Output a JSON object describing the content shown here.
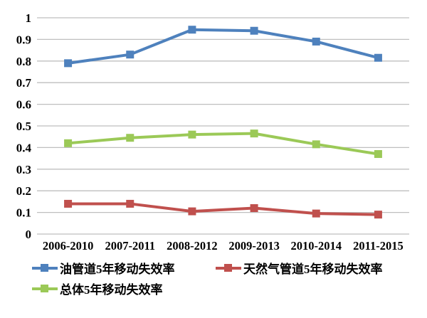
{
  "chart_data": {
    "type": "line",
    "title": "",
    "xlabel": "",
    "ylabel": "",
    "categories": [
      "2006-2010",
      "2007-2011",
      "2008-2012",
      "2009-2013",
      "2010-2014",
      "2011-2015"
    ],
    "series": [
      {
        "name": "油管道5年移动失效率",
        "color": "#4E81BD",
        "marker": "square",
        "values": [
          0.79,
          0.83,
          0.945,
          0.94,
          0.89,
          0.815
        ]
      },
      {
        "name": "天然气管道5年移动失效率",
        "color": "#C0504D",
        "marker": "square",
        "values": [
          0.14,
          0.14,
          0.105,
          0.12,
          0.095,
          0.09
        ]
      },
      {
        "name": "总体5年移动失效率",
        "color": "#9BC957",
        "marker": "square",
        "values": [
          0.42,
          0.445,
          0.46,
          0.465,
          0.415,
          0.37
        ]
      }
    ],
    "ylim": [
      0,
      1
    ],
    "y_ticks": [
      1,
      0.9,
      0.8,
      0.7,
      0.6,
      0.5,
      0.4,
      0.3,
      0.2,
      0.1,
      0
    ],
    "y_tick_labels": [
      "1",
      "0.9",
      "0.8",
      "0.7",
      "0.6",
      "0.5",
      "0.4",
      "0.3",
      "0.2",
      "0.1",
      "0"
    ],
    "grid": "horizontal",
    "gridline_color": "#BFBFBF",
    "text_color": "#000000",
    "legend_position": "bottom"
  }
}
